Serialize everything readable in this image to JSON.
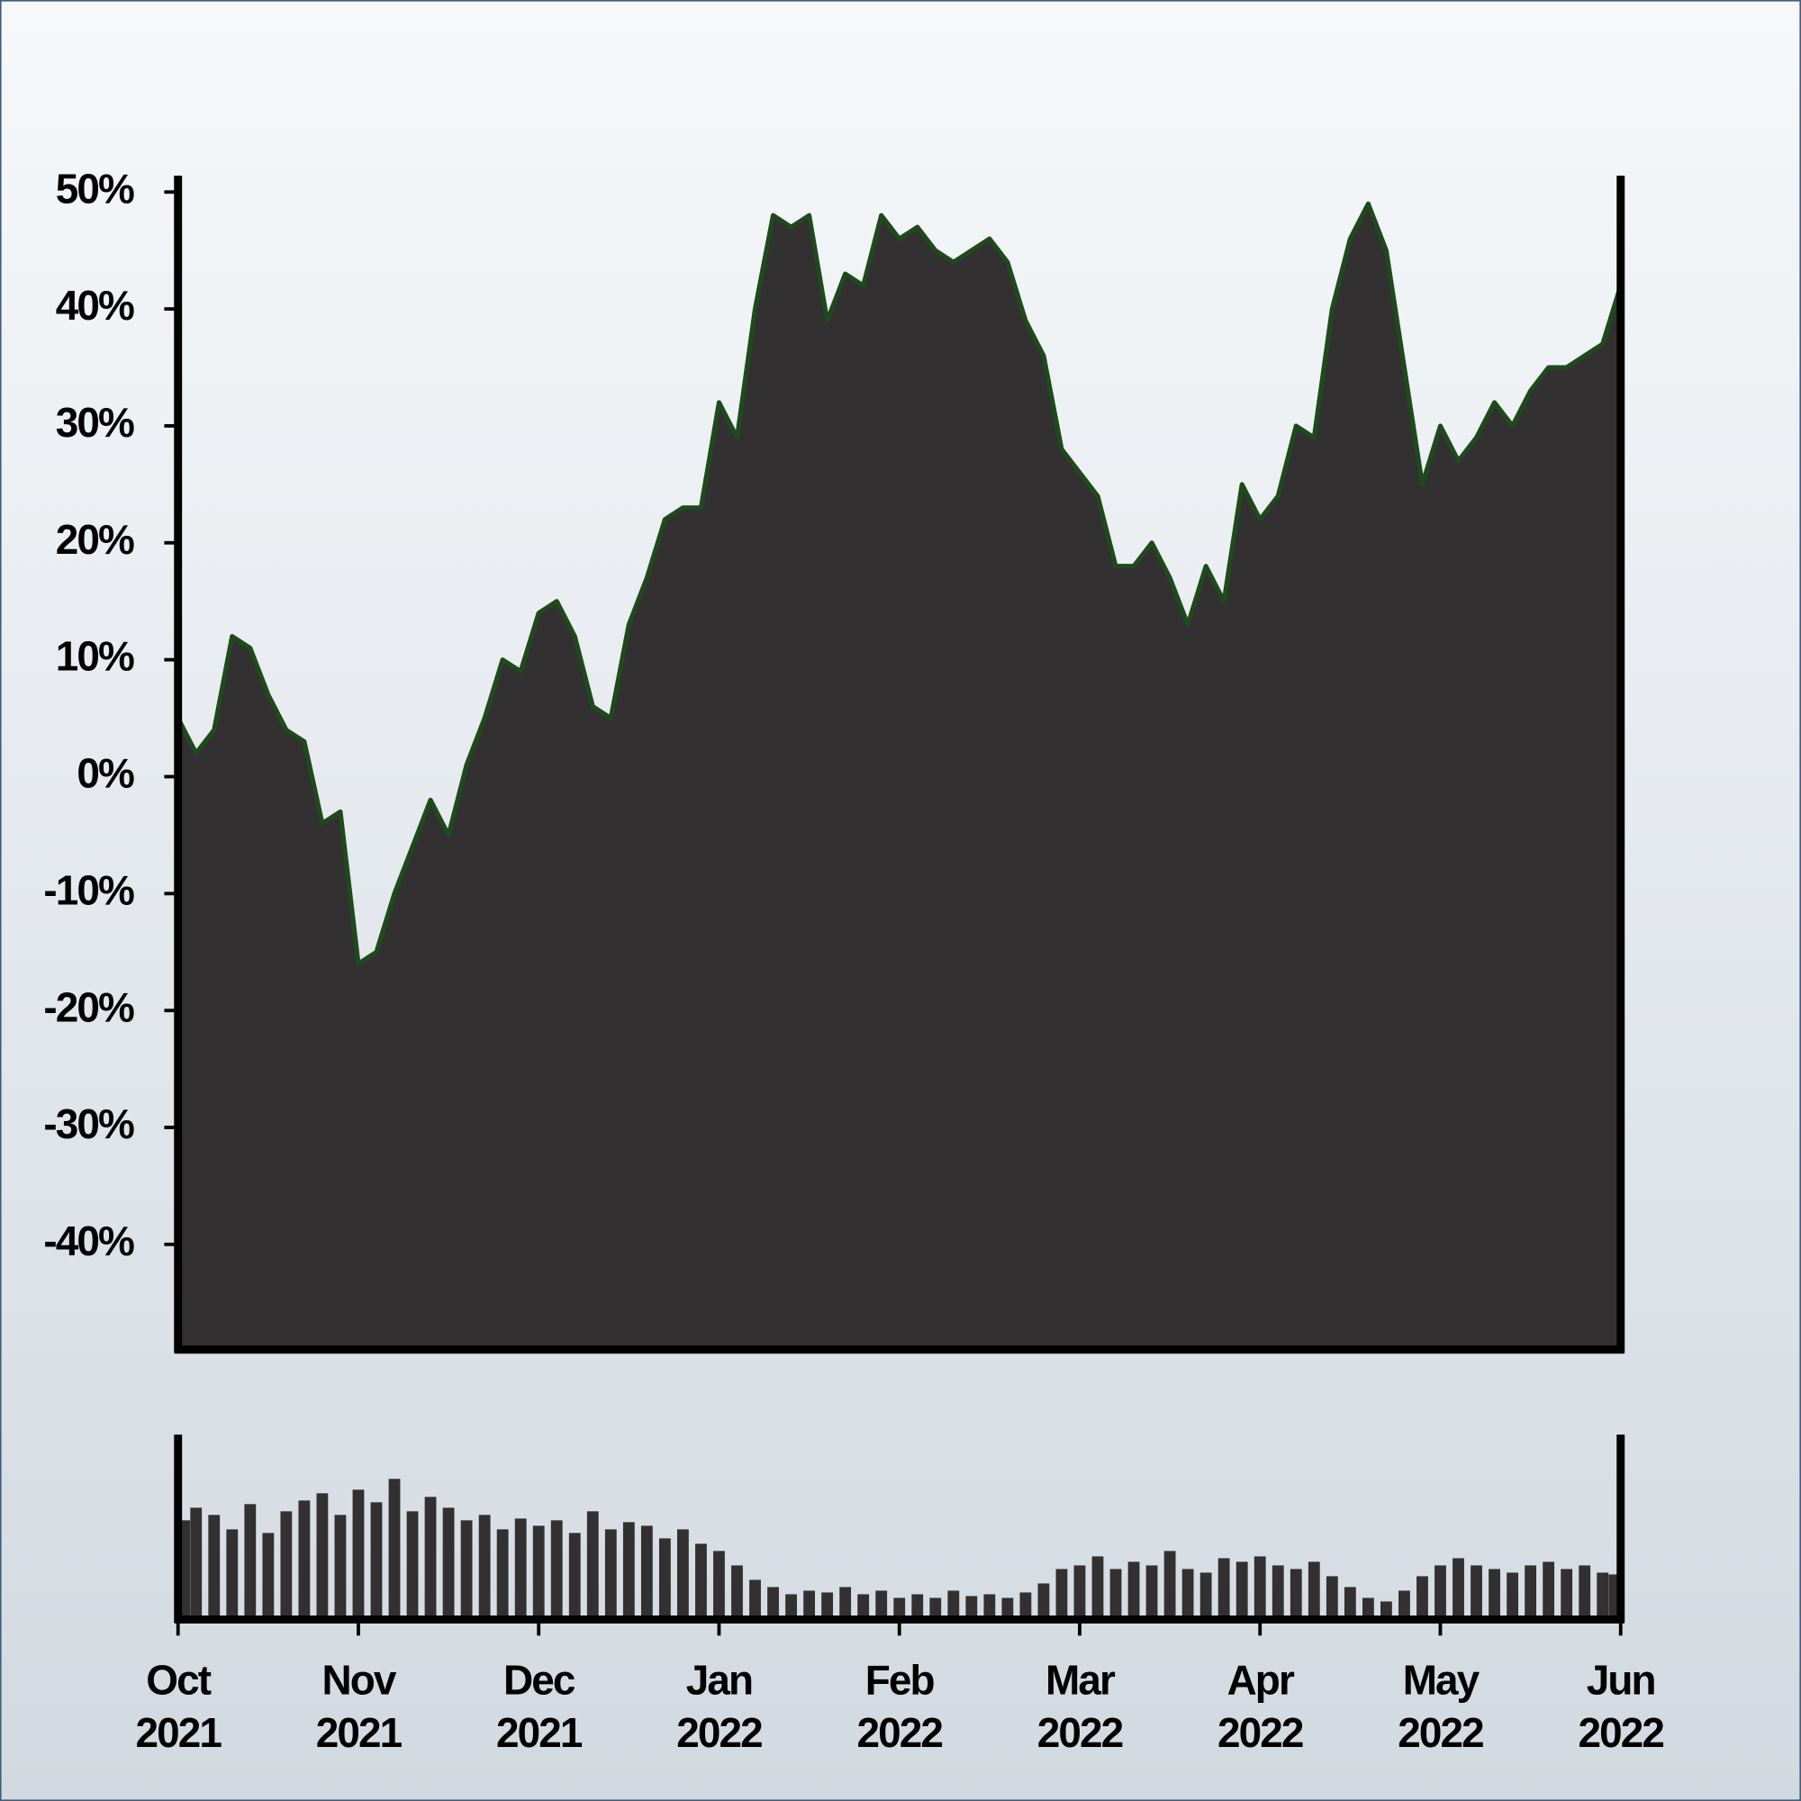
{
  "chart_data": [
    {
      "type": "area",
      "color": "#323031",
      "line_color": "#1f4a1c",
      "x": [
        0,
        0.1,
        0.2,
        0.3,
        0.4,
        0.5,
        0.6,
        0.7,
        0.8,
        0.9,
        1,
        1.1,
        1.2,
        1.3,
        1.4,
        1.5,
        1.6,
        1.7,
        1.8,
        1.9,
        2,
        2.1,
        2.2,
        2.3,
        2.4,
        2.5,
        2.6,
        2.7,
        2.8,
        2.9,
        3,
        3.1,
        3.2,
        3.3,
        3.4,
        3.5,
        3.6,
        3.7,
        3.8,
        3.9,
        4,
        4.1,
        4.2,
        4.3,
        4.4,
        4.5,
        4.6,
        4.7,
        4.8,
        4.9,
        5,
        5.1,
        5.2,
        5.3,
        5.4,
        5.5,
        5.6,
        5.7,
        5.8,
        5.9,
        6,
        6.1,
        6.2,
        6.3,
        6.4,
        6.5,
        6.6,
        6.7,
        6.8,
        6.9,
        7,
        7.1,
        7.2,
        7.3,
        7.4,
        7.5,
        7.6,
        7.7,
        7.8,
        7.9,
        8
      ],
      "values": [
        5,
        2,
        4,
        12,
        11,
        7,
        4,
        3,
        -4,
        -3,
        -16,
        -15,
        -10,
        -6,
        -2,
        -5,
        1,
        5,
        10,
        9,
        14,
        15,
        12,
        6,
        5,
        13,
        17,
        22,
        23,
        23,
        32,
        29,
        40,
        48,
        47,
        48,
        39,
        43,
        42,
        48,
        46,
        47,
        45,
        44,
        45,
        46,
        44,
        39,
        36,
        28,
        26,
        24,
        18,
        18,
        20,
        17,
        13,
        18,
        15,
        25,
        22,
        24,
        30,
        29,
        40,
        46,
        49,
        45,
        35,
        25,
        30,
        27,
        29,
        32,
        30,
        33,
        35,
        35,
        36,
        37,
        42
      ],
      "xlim": [
        0,
        8
      ],
      "ylim": [
        -49,
        51
      ],
      "yticks": [
        {
          "value": -40,
          "label": "-40%"
        },
        {
          "value": -30,
          "label": "-30%"
        },
        {
          "value": -20,
          "label": "-20%"
        },
        {
          "value": -10,
          "label": "-10%"
        },
        {
          "value": 0,
          "label": "0%"
        },
        {
          "value": 10,
          "label": "10%"
        },
        {
          "value": 20,
          "label": "20%"
        },
        {
          "value": 30,
          "label": "30%"
        },
        {
          "value": 40,
          "label": "40%"
        },
        {
          "value": 50,
          "label": "50%"
        }
      ]
    },
    {
      "type": "bar",
      "color": "#323031",
      "x": [
        0,
        0.1,
        0.2,
        0.3,
        0.4,
        0.5,
        0.6,
        0.7,
        0.8,
        0.9,
        1,
        1.1,
        1.2,
        1.3,
        1.4,
        1.5,
        1.6,
        1.7,
        1.8,
        1.9,
        2,
        2.1,
        2.2,
        2.3,
        2.4,
        2.5,
        2.6,
        2.7,
        2.8,
        2.9,
        3,
        3.1,
        3.2,
        3.3,
        3.4,
        3.5,
        3.6,
        3.7,
        3.8,
        3.9,
        4,
        4.1,
        4.2,
        4.3,
        4.4,
        4.5,
        4.6,
        4.7,
        4.8,
        4.9,
        5,
        5.1,
        5.2,
        5.3,
        5.4,
        5.5,
        5.6,
        5.7,
        5.8,
        5.9,
        6,
        6.1,
        6.2,
        6.3,
        6.4,
        6.5,
        6.6,
        6.7,
        6.8,
        6.9,
        7,
        7.1,
        7.2,
        7.3,
        7.4,
        7.5,
        7.6,
        7.7,
        7.8,
        7.9,
        8
      ],
      "values": [
        55,
        62,
        58,
        50,
        64,
        48,
        60,
        66,
        70,
        58,
        72,
        65,
        78,
        60,
        68,
        62,
        55,
        58,
        50,
        56,
        52,
        55,
        48,
        60,
        50,
        54,
        52,
        45,
        50,
        42,
        38,
        30,
        22,
        18,
        14,
        16,
        15,
        18,
        14,
        16,
        12,
        14,
        12,
        16,
        13,
        14,
        12,
        15,
        20,
        28,
        30,
        35,
        28,
        32,
        30,
        38,
        28,
        26,
        34,
        32,
        35,
        30,
        28,
        32,
        24,
        18,
        12,
        10,
        16,
        24,
        30,
        34,
        30,
        28,
        26,
        30,
        32,
        28,
        30,
        26,
        25
      ],
      "xlim": [
        0,
        8
      ],
      "ylim": [
        0,
        100
      ],
      "xticks": [
        {
          "value": 0,
          "label": "Oct 2021"
        },
        {
          "value": 1,
          "label": "Nov 2021"
        },
        {
          "value": 2,
          "label": "Dec 2021"
        },
        {
          "value": 3,
          "label": "Jan 2022"
        },
        {
          "value": 4,
          "label": "Feb 2022"
        },
        {
          "value": 5,
          "label": "Mar 2022"
        },
        {
          "value": 6,
          "label": "Apr 2022"
        },
        {
          "value": 7,
          "label": "May 2022"
        },
        {
          "value": 8,
          "label": "Jun 2022"
        }
      ]
    }
  ]
}
